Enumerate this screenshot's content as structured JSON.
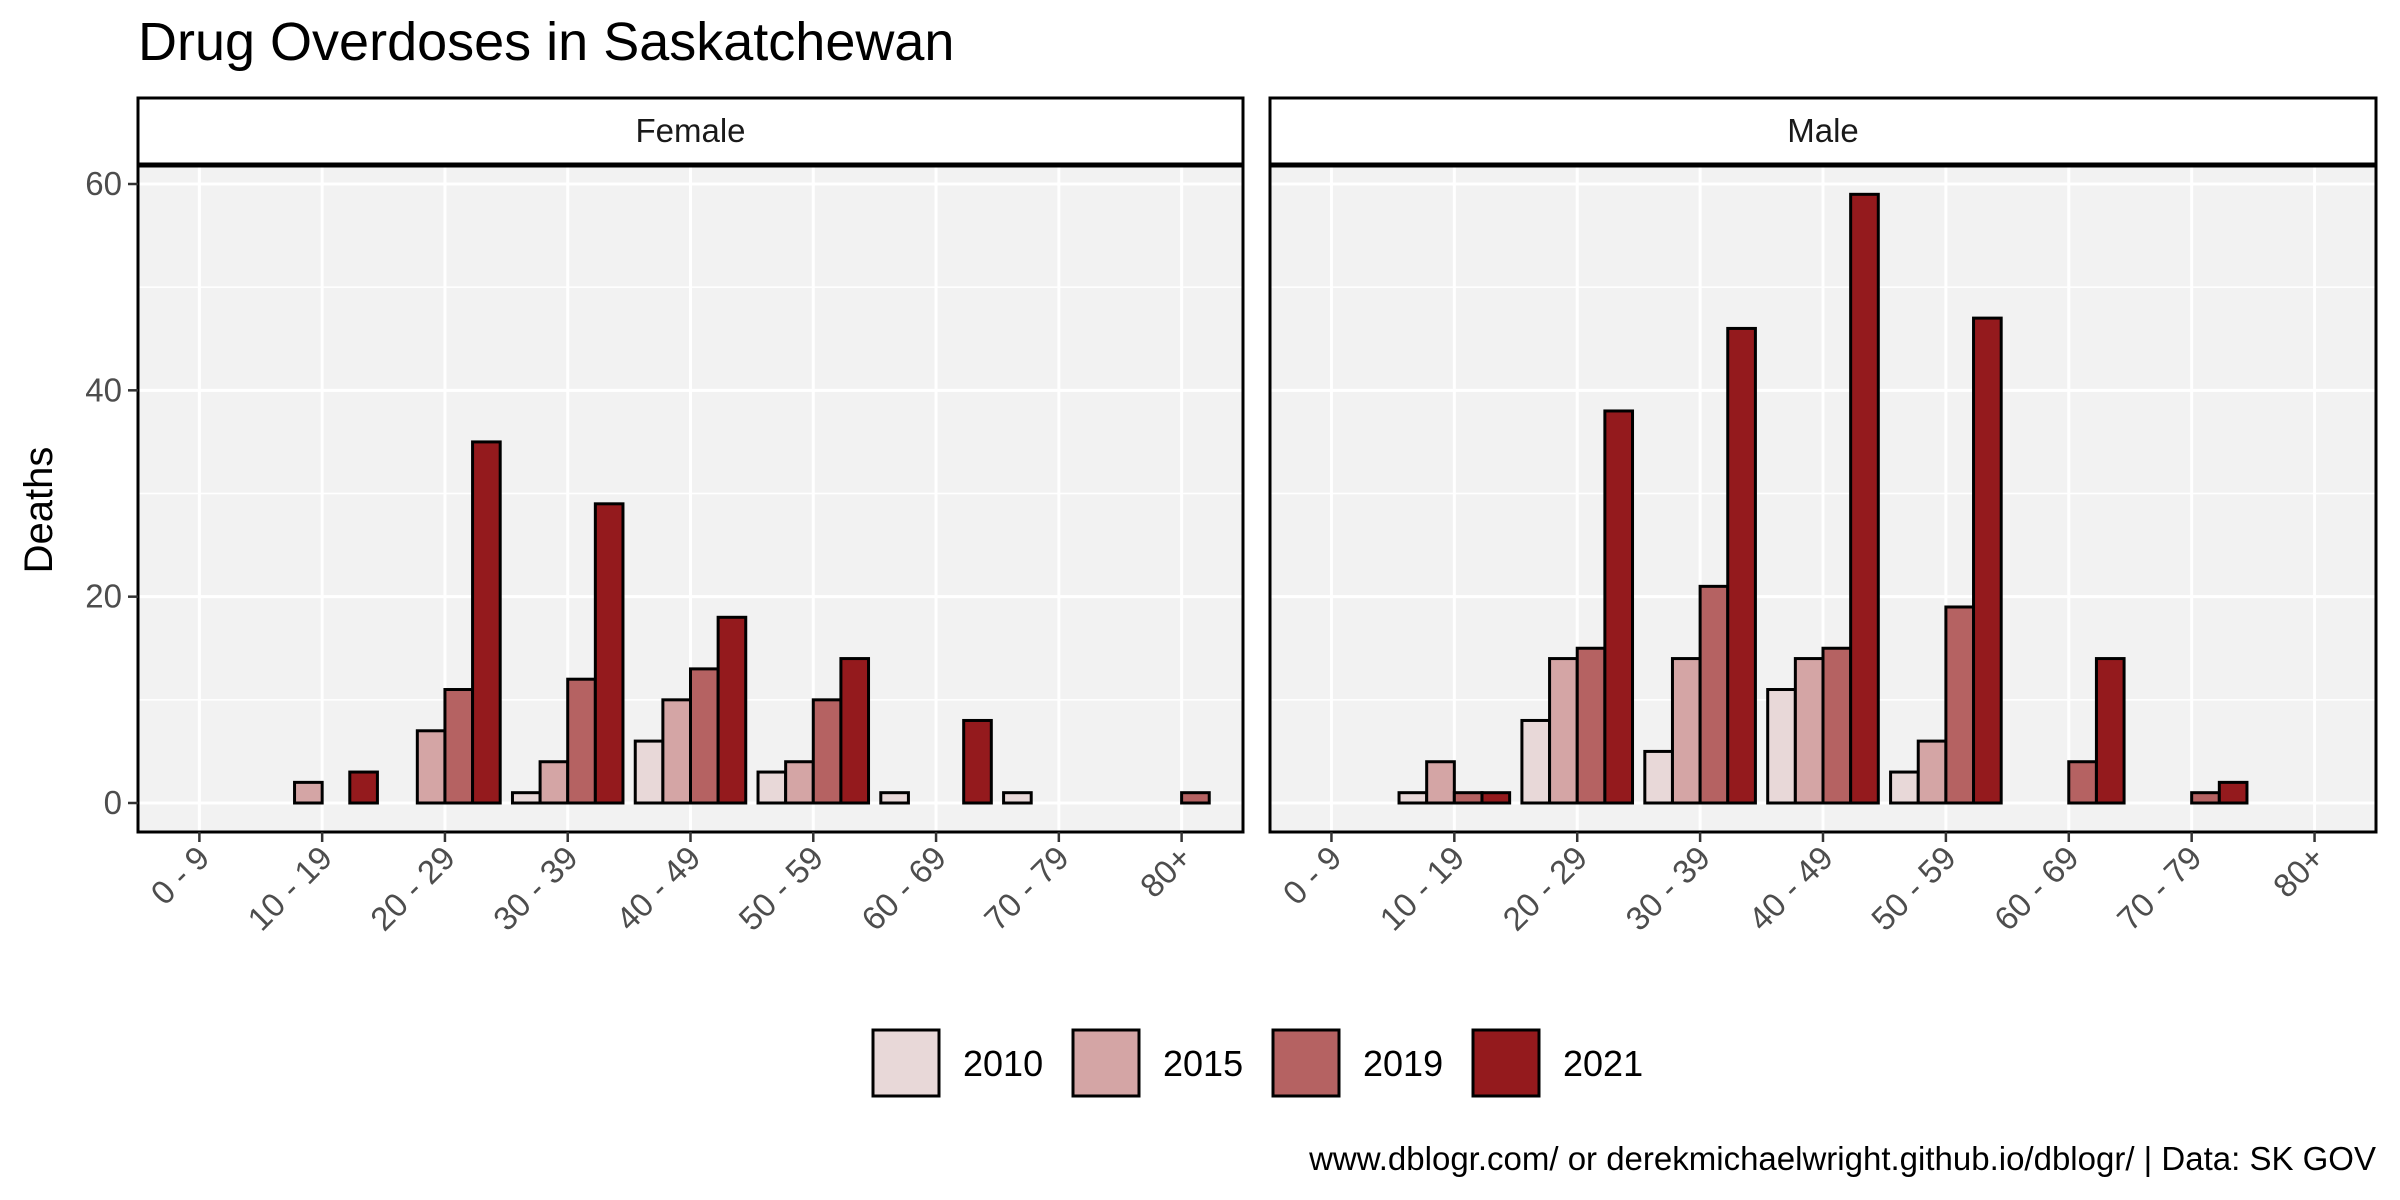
{
  "chart_data": {
    "type": "bar",
    "title": "Drug Overdoses in Saskatchewan",
    "xlabel": "",
    "ylabel": "Deaths",
    "ylim": [
      0,
      62
    ],
    "yticks": [
      0,
      20,
      40,
      60
    ],
    "grid": true,
    "legend_position": "bottom",
    "caption": "www.dblogr.com/ or derekmichaelwright.github.io/dblogr/ | Data: SK GOV",
    "categories": [
      "0 - 9",
      "10 - 19",
      "20 - 29",
      "30 - 39",
      "40 - 49",
      "50 - 59",
      "60 - 69",
      "70 - 79",
      "80+"
    ],
    "series_colors": {
      "2010": "#e8d8d8",
      "2015": "#d4a5a5",
      "2019": "#b56262",
      "2021": "#941a1d"
    },
    "legend": [
      "2010",
      "2015",
      "2019",
      "2021"
    ],
    "facets": [
      {
        "label": "Female",
        "series": [
          {
            "name": "2010",
            "values": [
              0,
              0,
              0,
              1,
              6,
              3,
              1,
              1,
              0
            ]
          },
          {
            "name": "2015",
            "values": [
              0,
              2,
              7,
              4,
              10,
              4,
              0,
              0,
              0
            ]
          },
          {
            "name": "2019",
            "values": [
              0,
              0,
              11,
              12,
              13,
              10,
              0,
              0,
              1
            ]
          },
          {
            "name": "2021",
            "values": [
              0,
              3,
              35,
              29,
              18,
              14,
              8,
              0,
              0
            ]
          }
        ]
      },
      {
        "label": "Male",
        "series": [
          {
            "name": "2010",
            "values": [
              0,
              1,
              8,
              5,
              11,
              3,
              0,
              0,
              0
            ]
          },
          {
            "name": "2015",
            "values": [
              0,
              4,
              14,
              14,
              14,
              6,
              0,
              0,
              0
            ]
          },
          {
            "name": "2019",
            "values": [
              0,
              1,
              15,
              21,
              15,
              19,
              4,
              1,
              0
            ]
          },
          {
            "name": "2021",
            "values": [
              0,
              1,
              38,
              46,
              59,
              47,
              14,
              2,
              0
            ]
          }
        ]
      }
    ]
  }
}
